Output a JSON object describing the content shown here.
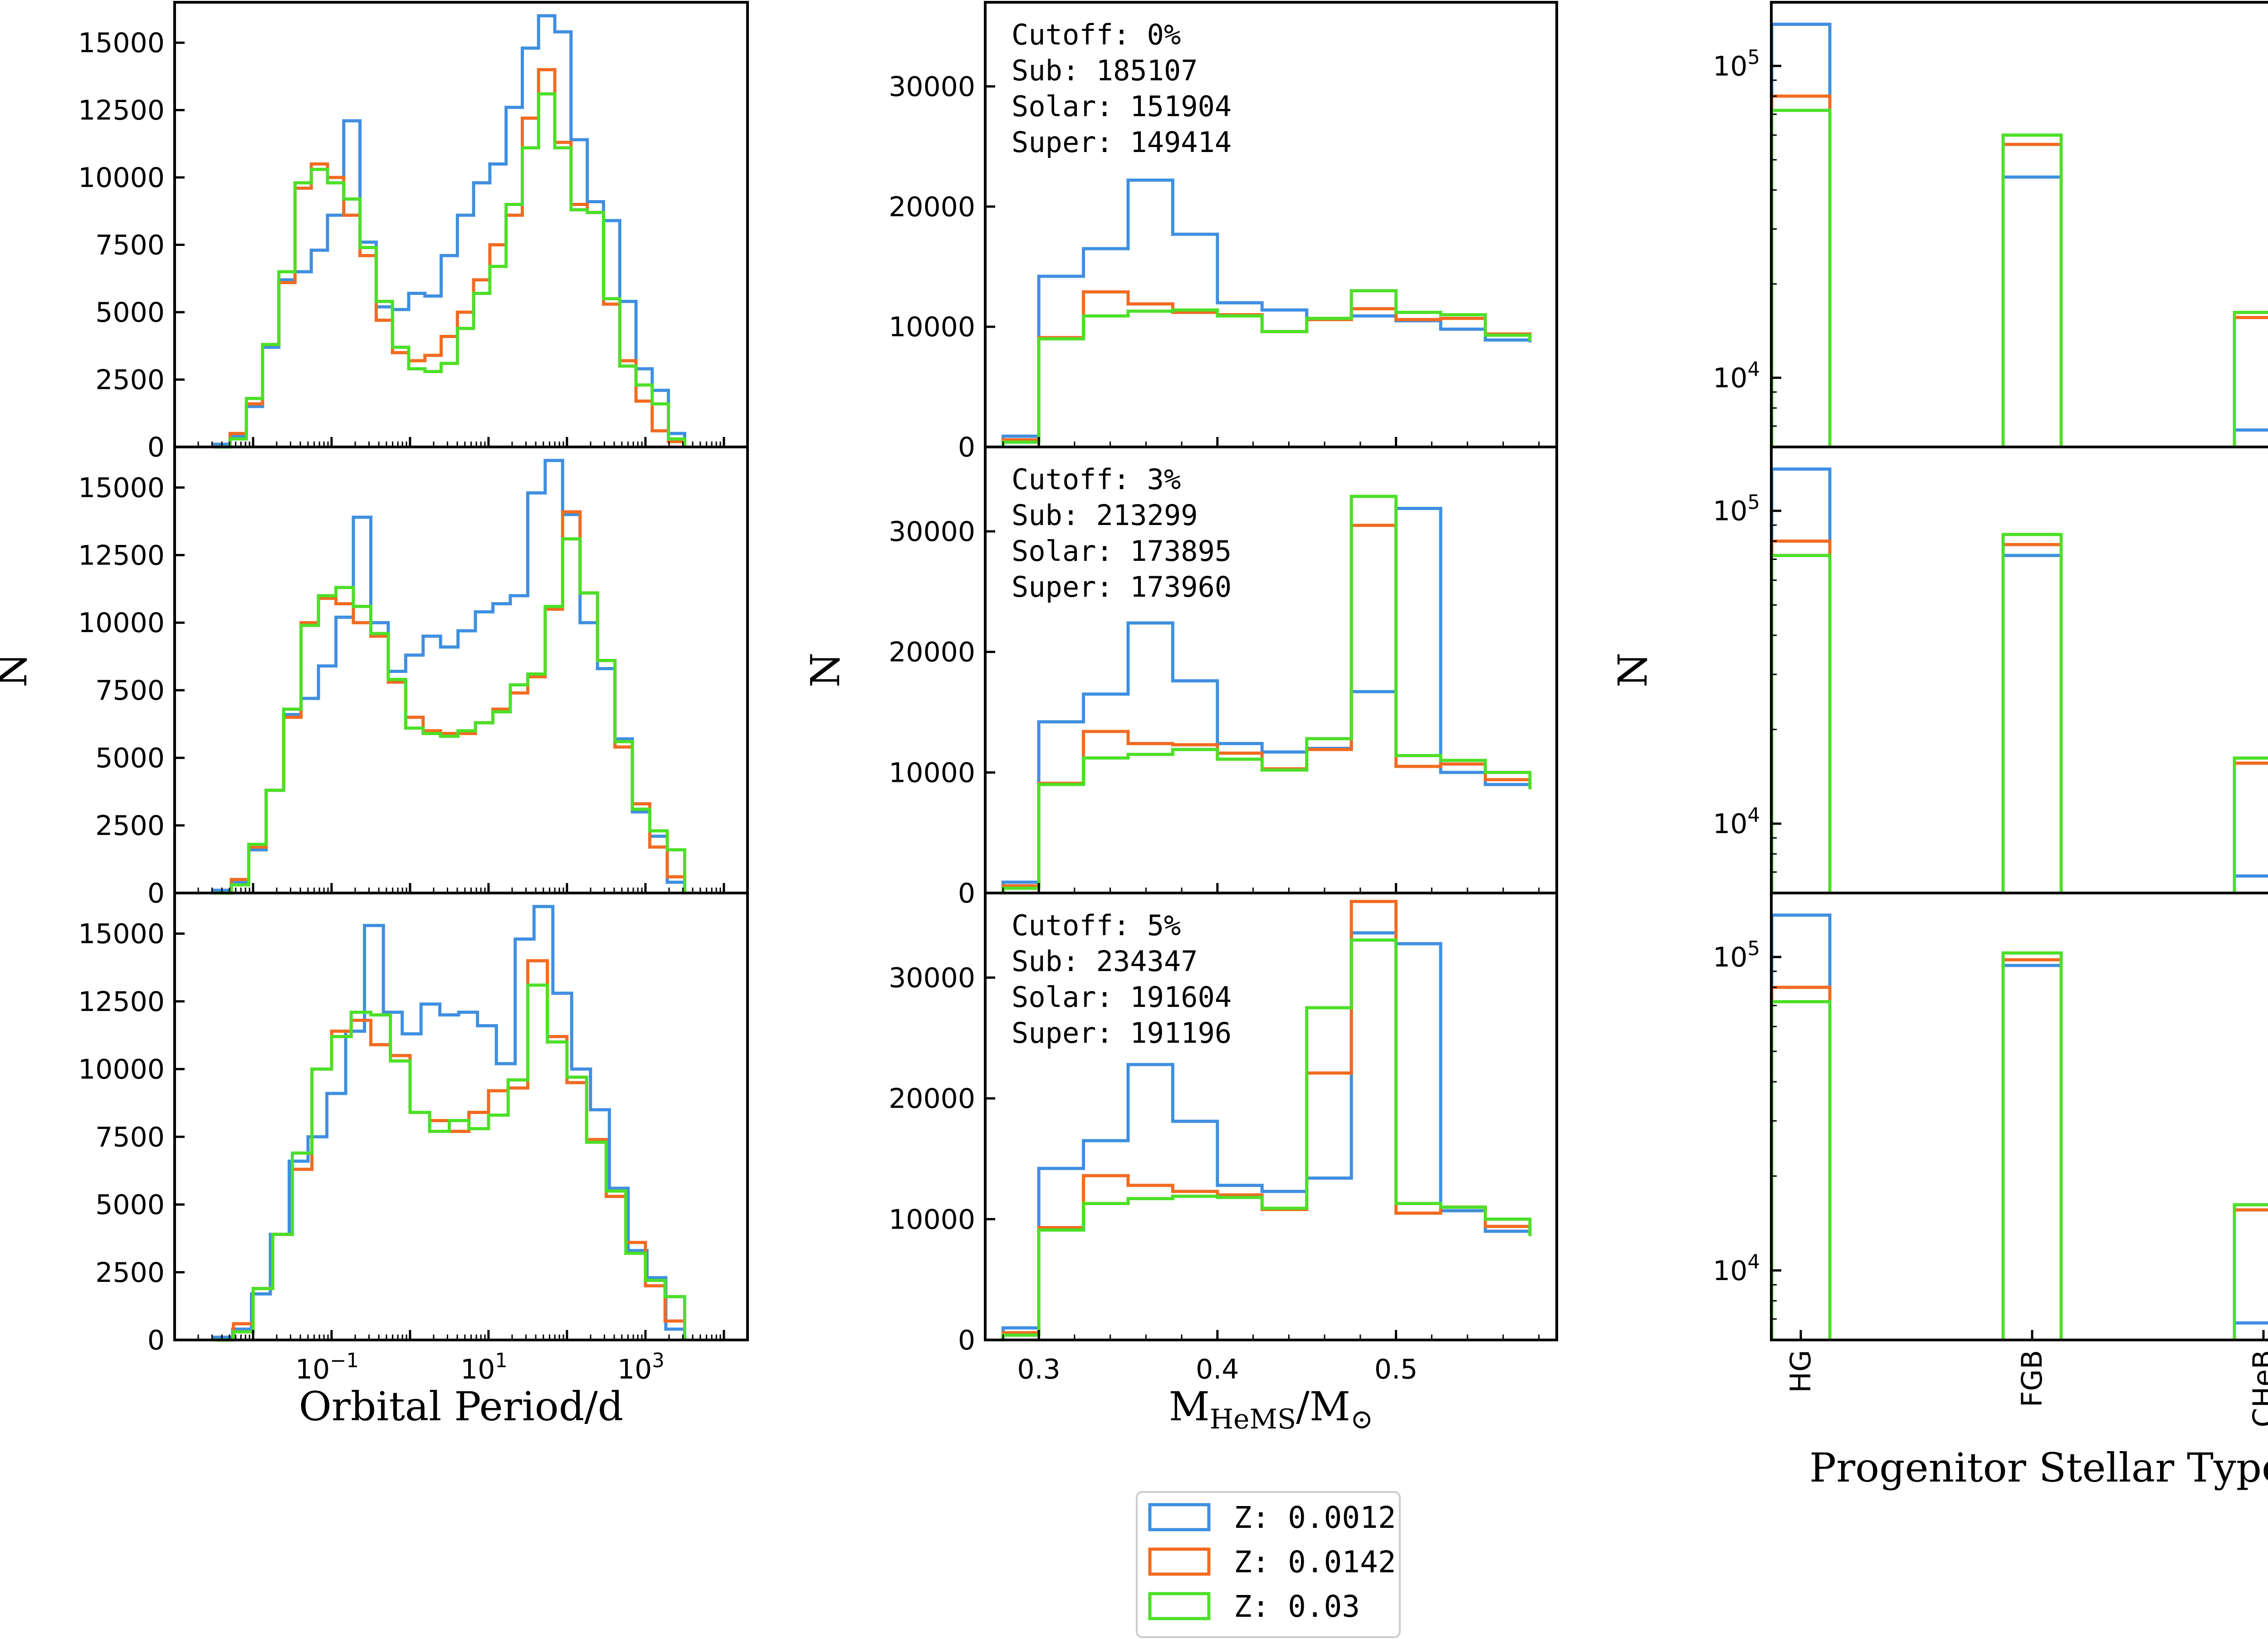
{
  "figure": {
    "legend": [
      {
        "label": "Z: 0.0012",
        "color": "#3f8fe0"
      },
      {
        "label": "Z: 0.0142",
        "color": "#f26b21"
      },
      {
        "label": "Z: 0.03",
        "color": "#4ddf28"
      }
    ]
  },
  "chart_data": [
    {
      "type": "histogram",
      "panel": "period-cutoff-0",
      "ylabel": "",
      "xlabel": "",
      "xscale": "log",
      "xlim": [
        0.001,
        20000
      ],
      "ylim": [
        0,
        16500
      ],
      "yticks": [
        "0",
        "2500",
        "5000",
        "7500",
        "10000",
        "12500",
        "15000"
      ],
      "xticks": [],
      "bin_edges_log10": [
        -2.5,
        -2.2,
        -1.9,
        -1.6,
        -1.3,
        -1.0,
        -0.7,
        -0.4,
        -0.1,
        0.2,
        0.5,
        0.8,
        1.1,
        1.4,
        1.7,
        2.0,
        2.3,
        2.6,
        2.9,
        3.2,
        3.5
      ],
      "series": [
        {
          "name": "Z: 0.0012",
          "values": [
            100,
            400,
            1500,
            3700,
            6200,
            6500,
            7300,
            8600,
            12100,
            7600,
            5200,
            5100,
            5700,
            5600,
            7100,
            8600,
            9800,
            10500,
            12600,
            14800,
            16000,
            15400,
            11400,
            9100,
            8400,
            5400,
            2900,
            2100,
            500
          ]
        },
        {
          "name": "Z: 0.0142",
          "values": [
            0,
            500,
            1600,
            3800,
            6100,
            9600,
            10500,
            10000,
            8600,
            7100,
            4700,
            3500,
            3200,
            3400,
            4100,
            5000,
            6200,
            7500,
            8600,
            12200,
            14000,
            11300,
            9000,
            8700,
            5300,
            3200,
            1700,
            600,
            200
          ]
        },
        {
          "name": "Z: 0.03",
          "values": [
            0,
            300,
            1800,
            3800,
            6500,
            9800,
            10300,
            9800,
            9200,
            7400,
            5400,
            3700,
            2900,
            2800,
            3100,
            4400,
            5700,
            6700,
            9000,
            11100,
            13100,
            11100,
            8800,
            8700,
            5500,
            3000,
            2300,
            1600,
            300
          ]
        }
      ]
    },
    {
      "type": "histogram",
      "panel": "mass-cutoff-0",
      "ylabel": "",
      "xlabel": "",
      "xlim": [
        0.27,
        0.59
      ],
      "ylim": [
        0,
        37000
      ],
      "yticks": [
        "0",
        "10000",
        "20000",
        "30000"
      ],
      "xticks": [],
      "annotation": [
        "Cutoff: 0%",
        "Sub: 185107",
        "Solar: 151904",
        "Super: 149414"
      ],
      "bin_edges": [
        0.28,
        0.3,
        0.325,
        0.35,
        0.375,
        0.4,
        0.425,
        0.45,
        0.475,
        0.5,
        0.525,
        0.55,
        0.575
      ],
      "series": [
        {
          "name": "Z: 0.0012",
          "values": [
            900,
            14200,
            16500,
            22200,
            17700,
            12000,
            11400,
            10600,
            10900,
            10500,
            9800,
            8900,
            8700
          ]
        },
        {
          "name": "Z: 0.0142",
          "values": [
            600,
            9100,
            12900,
            11900,
            11200,
            11000,
            9600,
            10600,
            11500,
            10600,
            10700,
            9400,
            8900
          ]
        },
        {
          "name": "Z: 0.03",
          "values": [
            400,
            9000,
            10900,
            11300,
            11400,
            10900,
            9600,
            10700,
            13000,
            11200,
            11000,
            9300,
            8800
          ]
        }
      ]
    },
    {
      "type": "bar",
      "panel": "type-cutoff-0",
      "yscale": "log",
      "ylim": [
        6000,
        160000
      ],
      "yticks": [
        "10^4",
        "10^5"
      ],
      "categories": [
        "HG",
        "FGB",
        "CHeB"
      ],
      "series": [
        {
          "name": "Z: 0.0012",
          "values": [
            136000,
            44000,
            6800
          ]
        },
        {
          "name": "Z: 0.0142",
          "values": [
            80000,
            56000,
            15600
          ]
        },
        {
          "name": "Z: 0.03",
          "values": [
            72000,
            60000,
            16200
          ]
        }
      ]
    },
    {
      "type": "histogram",
      "panel": "period-cutoff-3",
      "ylabel": "N",
      "xlabel": "",
      "xscale": "log",
      "xlim": [
        0.001,
        20000
      ],
      "ylim": [
        0,
        16500
      ],
      "yticks": [
        "0",
        "2500",
        "5000",
        "7500",
        "10000",
        "12500",
        "15000"
      ],
      "xticks": [],
      "bin_edges_log10": [
        -2.5,
        -2.2,
        -1.9,
        -1.6,
        -1.3,
        -1.0,
        -0.7,
        -0.4,
        -0.1,
        0.2,
        0.5,
        0.8,
        1.1,
        1.4,
        1.7,
        2.0,
        2.3,
        2.6,
        2.9,
        3.2,
        3.5
      ],
      "series": [
        {
          "name": "Z: 0.0012",
          "values": [
            100,
            400,
            1600,
            3800,
            6600,
            7200,
            8400,
            10200,
            13900,
            10000,
            8200,
            8800,
            9500,
            9100,
            9700,
            10400,
            10700,
            11000,
            14800,
            16000,
            14000,
            10000,
            8300,
            5700,
            3000,
            2100,
            400
          ]
        },
        {
          "name": "Z: 0.0142",
          "values": [
            0,
            500,
            1700,
            3800,
            6500,
            10000,
            10900,
            10700,
            10000,
            9500,
            7800,
            6500,
            6000,
            5900,
            5900,
            6300,
            6800,
            7400,
            8000,
            10500,
            14100,
            11100,
            8600,
            5400,
            3300,
            1700,
            600
          ]
        },
        {
          "name": "Z: 0.03",
          "values": [
            0,
            300,
            1800,
            3800,
            6800,
            9900,
            11000,
            11300,
            10600,
            9600,
            7900,
            6100,
            5900,
            5800,
            6000,
            6300,
            6700,
            7700,
            8100,
            10600,
            13100,
            11100,
            8600,
            5600,
            3100,
            2300,
            1600
          ]
        }
      ]
    },
    {
      "type": "histogram",
      "panel": "mass-cutoff-3",
      "ylabel": "N",
      "xlabel": "",
      "xlim": [
        0.27,
        0.59
      ],
      "ylim": [
        0,
        37000
      ],
      "yticks": [
        "0",
        "10000",
        "20000",
        "30000"
      ],
      "xticks": [],
      "annotation": [
        "Cutoff: 3%",
        "Sub: 213299",
        "Solar: 173895",
        "Super: 173960"
      ],
      "bin_edges": [
        0.28,
        0.3,
        0.325,
        0.35,
        0.375,
        0.4,
        0.425,
        0.45,
        0.475,
        0.5,
        0.525,
        0.55,
        0.575
      ],
      "series": [
        {
          "name": "Z: 0.0012",
          "values": [
            900,
            14200,
            16500,
            22400,
            17600,
            12400,
            11700,
            12000,
            16700,
            31900,
            10000,
            9000,
            8900
          ]
        },
        {
          "name": "Z: 0.0142",
          "values": [
            600,
            9100,
            13400,
            12400,
            12300,
            11600,
            10300,
            11900,
            30500,
            10500,
            10700,
            9400,
            8700
          ]
        },
        {
          "name": "Z: 0.03",
          "values": [
            400,
            9000,
            11200,
            11500,
            11900,
            11100,
            10200,
            12800,
            32900,
            11400,
            11000,
            10000,
            8600
          ]
        }
      ]
    },
    {
      "type": "bar",
      "panel": "type-cutoff-3",
      "ylabel": "N",
      "yscale": "log",
      "ylim": [
        6000,
        160000
      ],
      "yticks": [
        "10^4",
        "10^5"
      ],
      "categories": [
        "HG",
        "FGB",
        "CHeB"
      ],
      "series": [
        {
          "name": "Z: 0.0012",
          "values": [
            136000,
            72000,
            6800
          ]
        },
        {
          "name": "Z: 0.0142",
          "values": [
            80000,
            78000,
            15600
          ]
        },
        {
          "name": "Z: 0.03",
          "values": [
            72000,
            84000,
            16200
          ]
        }
      ]
    },
    {
      "type": "histogram",
      "panel": "period-cutoff-5",
      "ylabel": "",
      "xlabel": "Orbital Period/d",
      "xscale": "log",
      "xlim": [
        0.001,
        20000
      ],
      "ylim": [
        0,
        16500
      ],
      "yticks": [
        "0",
        "2500",
        "5000",
        "7500",
        "10000",
        "12500",
        "15000"
      ],
      "xticks": [
        "10^-1",
        "10^1",
        "10^3"
      ],
      "bin_edges_log10": [
        -2.5,
        -2.2,
        -1.9,
        -1.6,
        -1.3,
        -1.0,
        -0.7,
        -0.4,
        -0.1,
        0.2,
        0.5,
        0.8,
        1.1,
        1.4,
        1.7,
        2.0,
        2.3,
        2.6,
        2.9,
        3.2,
        3.5
      ],
      "series": [
        {
          "name": "Z: 0.0012",
          "values": [
            100,
            400,
            1700,
            3900,
            6600,
            7500,
            9100,
            11400,
            15300,
            12100,
            11300,
            12400,
            12000,
            12100,
            11600,
            10200,
            14800,
            16000,
            12800,
            10000,
            8500,
            5600,
            3300,
            2300,
            400
          ]
        },
        {
          "name": "Z: 0.0142",
          "values": [
            0,
            600,
            1900,
            3900,
            6300,
            10000,
            11400,
            11800,
            10900,
            10500,
            8400,
            8100,
            7700,
            8400,
            9200,
            9300,
            14000,
            11200,
            9500,
            7400,
            5300,
            3600,
            2000,
            700
          ]
        },
        {
          "name": "Z: 0.03",
          "values": [
            0,
            300,
            1900,
            3900,
            6900,
            10000,
            11200,
            12100,
            12000,
            10300,
            8400,
            7700,
            8100,
            7800,
            8300,
            9600,
            13100,
            11000,
            9700,
            7300,
            5500,
            3200,
            2200,
            1600
          ]
        }
      ]
    },
    {
      "type": "histogram",
      "panel": "mass-cutoff-5",
      "ylabel": "",
      "xlabel": "M_HeMS/M_sun",
      "xlim": [
        0.27,
        0.59
      ],
      "ylim": [
        0,
        37000
      ],
      "yticks": [
        "0",
        "10000",
        "20000",
        "30000"
      ],
      "xticks": [
        "0.3",
        "0.4",
        "0.5"
      ],
      "annotation": [
        "Cutoff: 5%",
        "Sub: 234347",
        "Solar: 191604",
        "Super: 191196"
      ],
      "bin_edges": [
        0.28,
        0.3,
        0.325,
        0.35,
        0.375,
        0.4,
        0.425,
        0.45,
        0.475,
        0.5,
        0.525,
        0.55,
        0.575
      ],
      "series": [
        {
          "name": "Z: 0.0012",
          "values": [
            1000,
            14200,
            16500,
            22800,
            18100,
            12800,
            12300,
            13400,
            33700,
            32800,
            10700,
            9000,
            8800
          ]
        },
        {
          "name": "Z: 0.0142",
          "values": [
            600,
            9300,
            13600,
            12800,
            12300,
            12000,
            10800,
            22100,
            36300,
            10500,
            11000,
            9400,
            8800
          ]
        },
        {
          "name": "Z: 0.03",
          "values": [
            400,
            9100,
            11300,
            11700,
            11900,
            11800,
            10900,
            27500,
            33100,
            11300,
            11000,
            10000,
            8600
          ]
        }
      ]
    },
    {
      "type": "bar",
      "panel": "type-cutoff-5",
      "yscale": "log",
      "ylim": [
        6000,
        160000
      ],
      "xlabel": "Progenitor Stellar Type",
      "yticks": [
        "10^4",
        "10^5"
      ],
      "categories": [
        "HG",
        "FGB",
        "CHeB"
      ],
      "series": [
        {
          "name": "Z: 0.0012",
          "values": [
            136000,
            94000,
            6800
          ]
        },
        {
          "name": "Z: 0.0142",
          "values": [
            80000,
            98000,
            15600
          ]
        },
        {
          "name": "Z: 0.03",
          "values": [
            72000,
            103000,
            16200
          ]
        }
      ]
    }
  ]
}
